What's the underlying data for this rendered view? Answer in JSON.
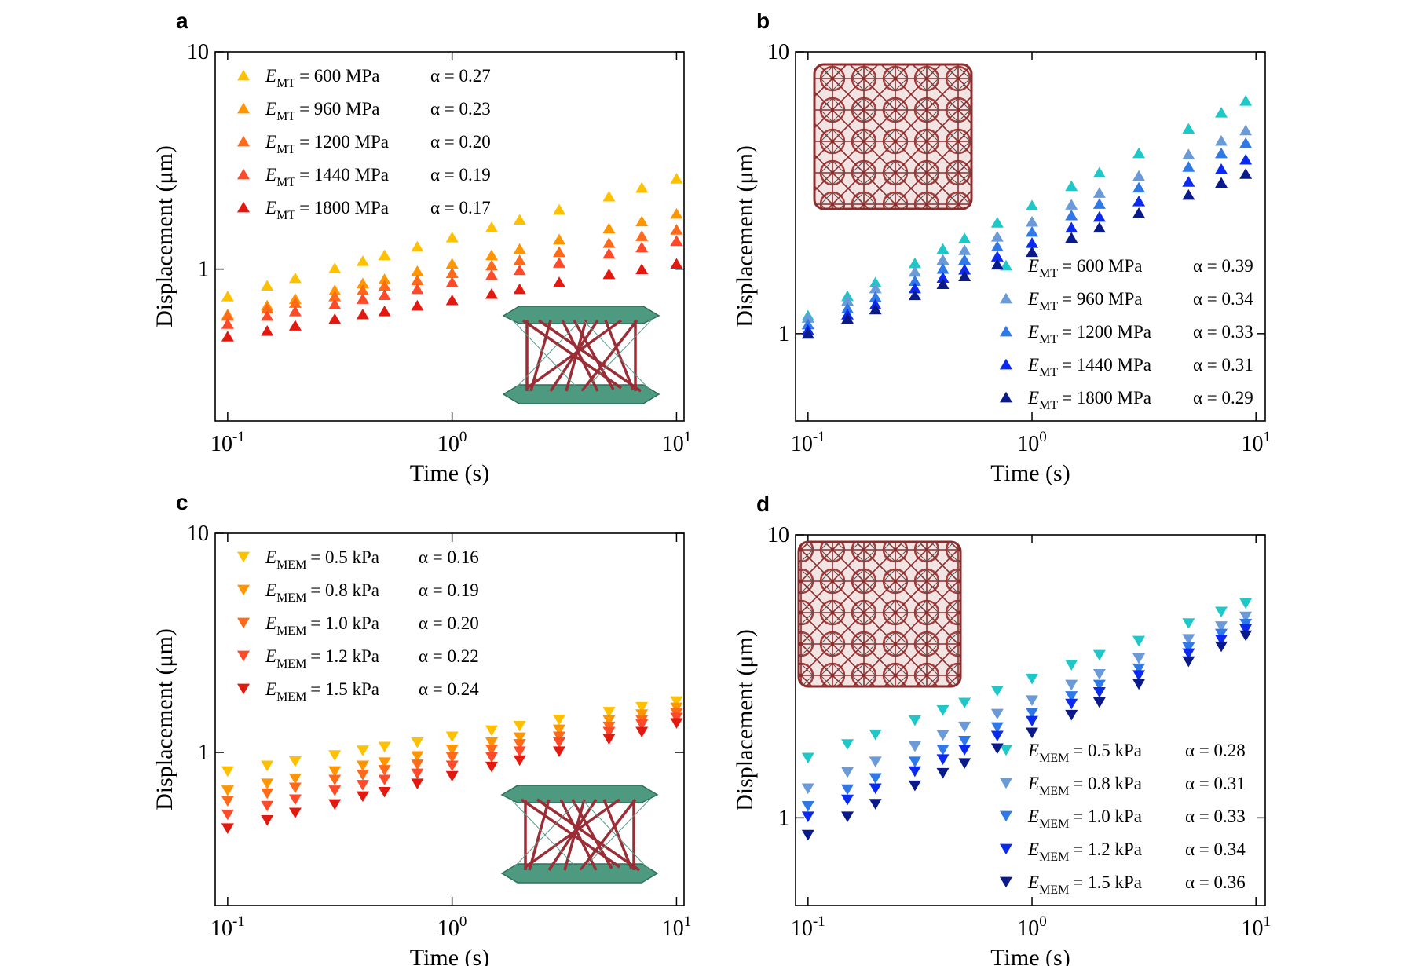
{
  "chart_data": [
    {
      "type": "scatter",
      "letter": "a",
      "xlabel": "Time (s)",
      "ylabel": "Displacement (μm)",
      "log_x": true,
      "log_y": true,
      "marker": "triangle-up",
      "legend": "upper left",
      "legend_symbol": "E",
      "legend_subscript": "MT",
      "xlim": [
        0.088,
        10.8
      ],
      "ylim": [
        0.2,
        10
      ],
      "xticks": [
        {
          "value": 0.1,
          "label": "10",
          "exponent": "-1"
        },
        {
          "value": 1,
          "label": "10",
          "exponent": "0"
        },
        {
          "value": 10,
          "label": "10",
          "exponent": "1"
        }
      ],
      "yticks": [
        1,
        10
      ],
      "x": [
        0.1,
        0.15,
        0.2,
        0.3,
        0.4,
        0.5,
        0.7,
        1,
        1.5,
        2,
        3,
        5,
        7,
        10
      ],
      "series": [
        {
          "name": "= 600 MPa",
          "alpha_label": "α = 0.27",
          "color": "#FFC000",
          "values": [
            0.75,
            0.84,
            0.91,
            1.01,
            1.09,
            1.16,
            1.27,
            1.4,
            1.56,
            1.69,
            1.88,
            2.16,
            2.37,
            2.61
          ]
        },
        {
          "name": "= 960 MPa",
          "alpha_label": "α = 0.23",
          "color": "#FF9500",
          "values": [
            0.62,
            0.68,
            0.73,
            0.8,
            0.86,
            0.9,
            0.98,
            1.06,
            1.16,
            1.24,
            1.37,
            1.54,
            1.66,
            1.8
          ]
        },
        {
          "name": "= 1200 MPa",
          "alpha_label": "α = 0.20",
          "color": "#FF6A1A",
          "values": [
            0.61,
            0.66,
            0.7,
            0.75,
            0.8,
            0.84,
            0.89,
            0.96,
            1.04,
            1.1,
            1.2,
            1.32,
            1.42,
            1.52
          ]
        },
        {
          "name": "= 1440 MPa",
          "alpha_label": "α = 0.19",
          "color": "#FF4A2A",
          "values": [
            0.56,
            0.61,
            0.64,
            0.69,
            0.73,
            0.76,
            0.81,
            0.87,
            0.94,
            0.99,
            1.07,
            1.18,
            1.26,
            1.35
          ]
        },
        {
          "name": "= 1800 MPa",
          "alpha_label": "α = 0.17",
          "color": "#E3190F",
          "values": [
            0.49,
            0.52,
            0.55,
            0.59,
            0.62,
            0.64,
            0.68,
            0.72,
            0.77,
            0.81,
            0.87,
            0.95,
            1.0,
            1.06
          ]
        }
      ]
    },
    {
      "type": "scatter",
      "letter": "b",
      "xlabel": "Time (s)",
      "ylabel": "Displacement (μm)",
      "log_x": true,
      "log_y": true,
      "marker": "triangle-up",
      "legend": "lower right",
      "legend_symbol": "E",
      "legend_subscript": "MT",
      "xlim": [
        0.088,
        11
      ],
      "ylim": [
        0.49,
        10
      ],
      "xticks": [
        {
          "value": 0.1,
          "label": "10",
          "exponent": "-1"
        },
        {
          "value": 1,
          "label": "10",
          "exponent": "0"
        },
        {
          "value": 10,
          "label": "10",
          "exponent": "1"
        }
      ],
      "yticks": [
        1,
        10
      ],
      "x": [
        0.1,
        0.15,
        0.2,
        0.3,
        0.4,
        0.5,
        0.7,
        1,
        1.5,
        2,
        3,
        5,
        7,
        9
      ],
      "series": [
        {
          "name": "= 600 MPa",
          "alpha_label": "α = 0.39",
          "color": "#1FC8C8",
          "values": [
            1.16,
            1.36,
            1.52,
            1.78,
            2.0,
            2.18,
            2.48,
            2.85,
            3.34,
            3.73,
            4.37,
            5.34,
            6.09,
            6.71
          ]
        },
        {
          "name": "= 960 MPa",
          "alpha_label": "α = 0.34",
          "color": "#6A9BD8",
          "values": [
            1.14,
            1.31,
            1.45,
            1.66,
            1.83,
            1.98,
            2.21,
            2.5,
            2.87,
            3.16,
            3.63,
            4.33,
            4.84,
            5.27
          ]
        },
        {
          "name": "= 1200 MPa",
          "alpha_label": "α = 0.33",
          "color": "#2F78E8",
          "values": [
            1.08,
            1.23,
            1.35,
            1.54,
            1.7,
            1.83,
            2.04,
            2.3,
            2.63,
            2.89,
            3.3,
            3.91,
            4.37,
            4.75
          ]
        },
        {
          "name": "= 1440 MPa",
          "alpha_label": "α = 0.31",
          "color": "#0A2AF0",
          "values": [
            1.03,
            1.17,
            1.27,
            1.45,
            1.58,
            1.69,
            1.88,
            2.1,
            2.38,
            2.6,
            2.95,
            3.46,
            3.84,
            4.15
          ]
        },
        {
          "name": "= 1800 MPa",
          "alpha_label": "α = 0.29",
          "color": "#0A1A8A",
          "values": [
            1.0,
            1.13,
            1.22,
            1.37,
            1.5,
            1.6,
            1.76,
            1.95,
            2.19,
            2.38,
            2.68,
            3.11,
            3.43,
            3.69
          ]
        }
      ]
    },
    {
      "type": "scatter",
      "letter": "c",
      "xlabel": "Time (s)",
      "ylabel": "Displacement (μm)",
      "log_x": true,
      "log_y": true,
      "marker": "triangle-down",
      "legend": "upper left",
      "legend_symbol": "E",
      "legend_subscript": "MEM",
      "xlim": [
        0.088,
        10.8
      ],
      "ylim": [
        0.2,
        10
      ],
      "xticks": [
        {
          "value": 0.1,
          "label": "10",
          "exponent": "-1"
        },
        {
          "value": 1,
          "label": "10",
          "exponent": "0"
        },
        {
          "value": 10,
          "label": "10",
          "exponent": "1"
        }
      ],
      "yticks": [
        1,
        10
      ],
      "x": [
        0.1,
        0.15,
        0.2,
        0.3,
        0.4,
        0.5,
        0.7,
        1,
        1.5,
        2,
        3,
        5,
        7,
        10
      ],
      "series": [
        {
          "name": "= 0.5 kPa",
          "alpha_label": "α = 0.16",
          "color": "#FFC000",
          "values": [
            0.82,
            0.87,
            0.91,
            0.97,
            1.02,
            1.06,
            1.11,
            1.18,
            1.26,
            1.32,
            1.41,
            1.53,
            1.61,
            1.71
          ]
        },
        {
          "name": "= 0.8 kPa",
          "alpha_label": "α = 0.19",
          "color": "#FF9500",
          "values": [
            0.67,
            0.72,
            0.76,
            0.82,
            0.87,
            0.9,
            0.96,
            1.03,
            1.11,
            1.17,
            1.27,
            1.4,
            1.49,
            1.6
          ]
        },
        {
          "name": "= 1.0 kPa",
          "alpha_label": "α = 0.20",
          "color": "#FF6A1A",
          "values": [
            0.6,
            0.65,
            0.69,
            0.75,
            0.79,
            0.83,
            0.88,
            0.95,
            1.03,
            1.09,
            1.18,
            1.31,
            1.4,
            1.51
          ]
        },
        {
          "name": "= 1.2 kPa",
          "alpha_label": "α = 0.22",
          "color": "#FF4A2A",
          "values": [
            0.52,
            0.57,
            0.61,
            0.67,
            0.71,
            0.75,
            0.8,
            0.87,
            0.95,
            1.01,
            1.11,
            1.24,
            1.34,
            1.44
          ]
        },
        {
          "name": "= 1.5 kPa",
          "alpha_label": "α = 0.24",
          "color": "#E3190F",
          "values": [
            0.45,
            0.49,
            0.53,
            0.58,
            0.63,
            0.66,
            0.72,
            0.78,
            0.86,
            0.92,
            1.01,
            1.15,
            1.24,
            1.36
          ]
        }
      ]
    },
    {
      "type": "scatter",
      "letter": "d",
      "xlabel": "Time (s)",
      "ylabel": "Displacement (μm)",
      "log_x": true,
      "log_y": true,
      "marker": "triangle-down",
      "legend": "lower right",
      "legend_symbol": "E",
      "legend_subscript": "MEM",
      "xlim": [
        0.088,
        11
      ],
      "ylim": [
        0.49,
        10
      ],
      "xticks": [
        {
          "value": 0.1,
          "label": "10",
          "exponent": "-1"
        },
        {
          "value": 1,
          "label": "10",
          "exponent": "0"
        },
        {
          "value": 10,
          "label": "10",
          "exponent": "1"
        }
      ],
      "yticks": [
        1,
        10
      ],
      "x": [
        0.1,
        0.15,
        0.2,
        0.3,
        0.4,
        0.5,
        0.7,
        1,
        1.5,
        2,
        3,
        5,
        7,
        9
      ],
      "series": [
        {
          "name": "= 0.5 kPa",
          "alpha_label": "α = 0.28",
          "color": "#1FC8C8",
          "values": [
            1.63,
            1.82,
            1.97,
            2.21,
            2.4,
            2.55,
            2.81,
            3.1,
            3.47,
            3.76,
            4.22,
            4.87,
            5.35,
            5.73
          ]
        },
        {
          "name": "= 0.8 kPa",
          "alpha_label": "α = 0.31",
          "color": "#6A9BD8",
          "values": [
            1.27,
            1.45,
            1.58,
            1.79,
            1.96,
            2.1,
            2.33,
            2.6,
            2.95,
            3.22,
            3.66,
            4.28,
            4.75,
            5.14
          ]
        },
        {
          "name": "= 1.0 kPa",
          "alpha_label": "α = 0.33",
          "color": "#2F78E8",
          "values": [
            1.1,
            1.26,
            1.38,
            1.58,
            1.74,
            1.87,
            2.09,
            2.35,
            2.69,
            2.95,
            3.37,
            4.0,
            4.47,
            4.85
          ]
        },
        {
          "name": "= 1.2 kPa",
          "alpha_label": "α = 0.34",
          "color": "#0A2AF0",
          "values": [
            1.01,
            1.16,
            1.27,
            1.46,
            1.61,
            1.74,
            1.95,
            2.2,
            2.53,
            2.78,
            3.19,
            3.81,
            4.26,
            4.64
          ]
        },
        {
          "name": "= 1.5 kPa",
          "alpha_label": "α = 0.36",
          "color": "#0A1A8A",
          "values": [
            0.87,
            1.01,
            1.12,
            1.3,
            1.44,
            1.56,
            1.76,
            2.0,
            2.31,
            2.56,
            2.97,
            3.57,
            4.03,
            4.41
          ]
        }
      ]
    }
  ]
}
